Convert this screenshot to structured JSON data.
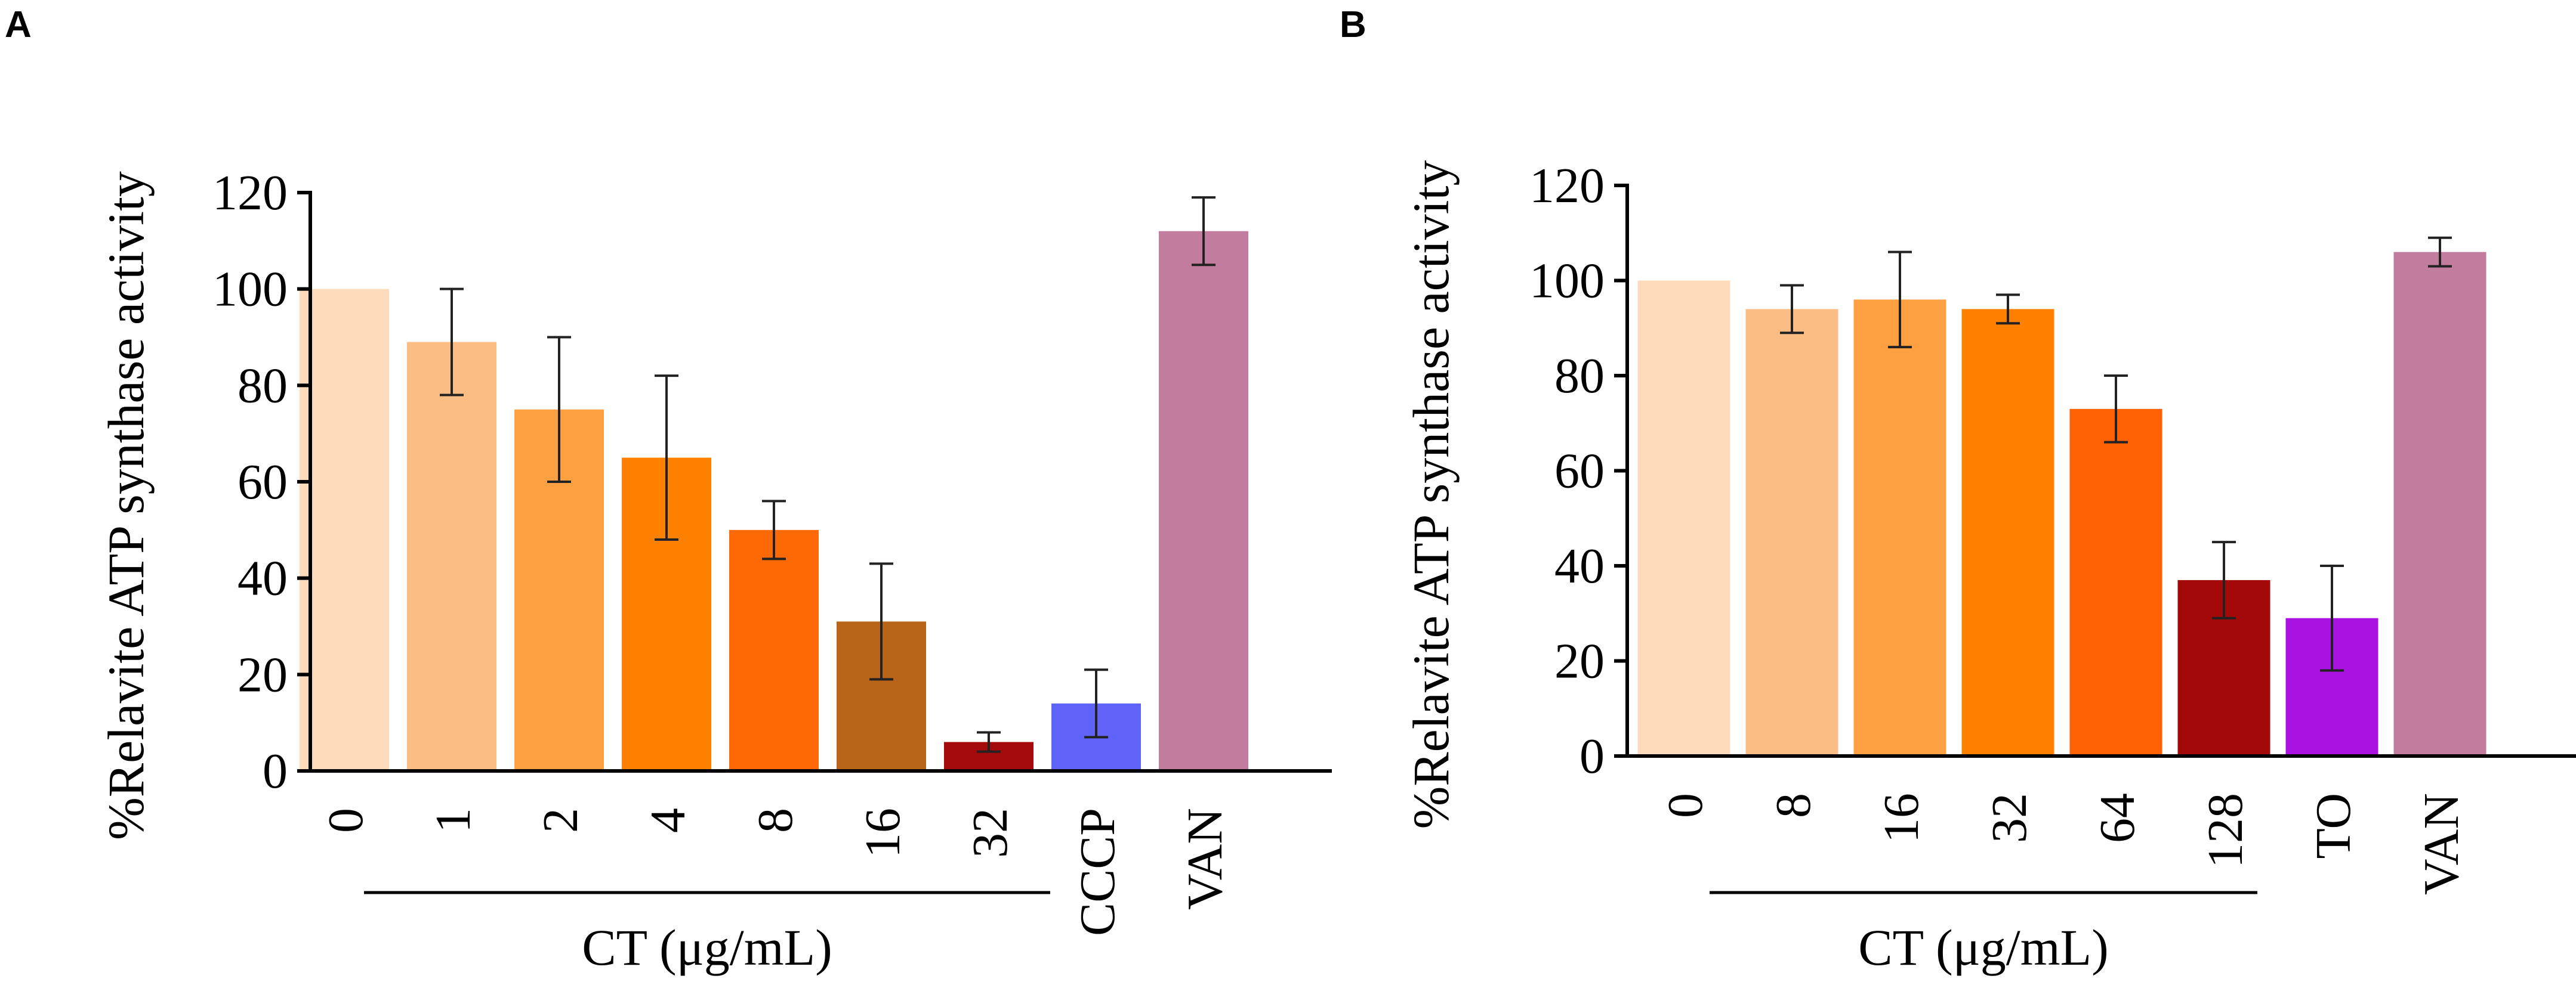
{
  "chart_data": [
    {
      "panel": "A",
      "type": "bar",
      "ylabel": "%Relavite ATP synthase activity",
      "xlabel": "CT (μg/mL)",
      "ylim": [
        0,
        120
      ],
      "yticks": [
        0,
        20,
        40,
        60,
        80,
        100,
        120
      ],
      "categories": [
        "0",
        "1",
        "2",
        "4",
        "8",
        "16",
        "32",
        "CCCP",
        "VAN"
      ],
      "values": [
        100,
        89,
        75,
        65,
        50,
        31,
        6,
        14,
        112
      ],
      "errors": [
        0,
        11,
        15,
        17,
        6,
        12,
        2,
        7,
        7
      ],
      "colors": [
        "#FDDCBB",
        "#FCBD85",
        "#FCA041",
        "#FE8000",
        "#FD6A05",
        "#B96519",
        "#A50A0A",
        "#6063F8",
        "#C17C9E"
      ],
      "group_span": [
        "0",
        "32"
      ]
    },
    {
      "panel": "B",
      "type": "bar",
      "ylabel": "%Relavite ATP synthase activity",
      "xlabel": "CT (μg/mL)",
      "ylim": [
        0,
        120
      ],
      "yticks": [
        0,
        20,
        40,
        60,
        80,
        100,
        120
      ],
      "categories": [
        "0",
        "8",
        "16",
        "32",
        "64",
        "128",
        "TO",
        "VAN"
      ],
      "values": [
        100,
        94,
        96,
        94,
        73,
        37,
        29,
        106
      ],
      "errors": [
        0,
        5,
        10,
        3,
        7,
        8,
        11,
        3
      ],
      "colors": [
        "#FDDCBB",
        "#FCBD85",
        "#FCA041",
        "#FE8000",
        "#FE6104",
        "#A20908",
        "#A913E1",
        "#C17C9E"
      ],
      "group_span": [
        "0",
        "128"
      ]
    }
  ]
}
